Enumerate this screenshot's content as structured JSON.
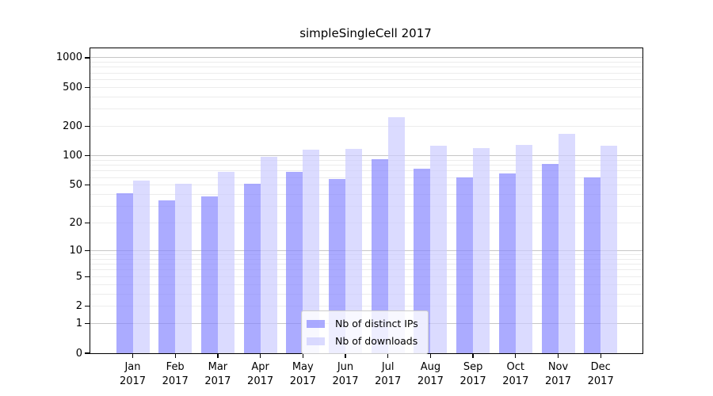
{
  "chart_data": {
    "type": "bar",
    "title": "simpleSingleCell 2017",
    "categories": [
      "Jan 2017",
      "Feb 2017",
      "Mar 2017",
      "Apr 2017",
      "May 2017",
      "Jun 2017",
      "Jul 2017",
      "Aug 2017",
      "Sep 2017",
      "Oct 2017",
      "Nov 2017",
      "Dec 2017"
    ],
    "series": [
      {
        "name": "Nb of distinct IPs",
        "color": "rgba(136,136,255,0.7)",
        "values": [
          41,
          35,
          38,
          52,
          69,
          58,
          92,
          74,
          60,
          66,
          83,
          60
        ]
      },
      {
        "name": "Nb of downloads",
        "color": "rgba(204,204,255,0.7)",
        "values": [
          56,
          52,
          69,
          97,
          115,
          118,
          247,
          126,
          121,
          130,
          167,
          128
        ]
      }
    ],
    "xlabel": "",
    "ylabel": "",
    "yscale": "log1p",
    "ylim": [
      0,
      1250
    ],
    "y_ticks": [
      0,
      1,
      2,
      5,
      10,
      20,
      50,
      100,
      200,
      500,
      1000
    ],
    "y_major_gridlines": [
      1,
      10,
      100,
      1000
    ],
    "grid": true,
    "legend_position": "lower center",
    "colors": {
      "major_grid": "#c6c6c6",
      "minor_grid": "#ececec",
      "axis": "#000000",
      "background": "#ffffff"
    }
  }
}
